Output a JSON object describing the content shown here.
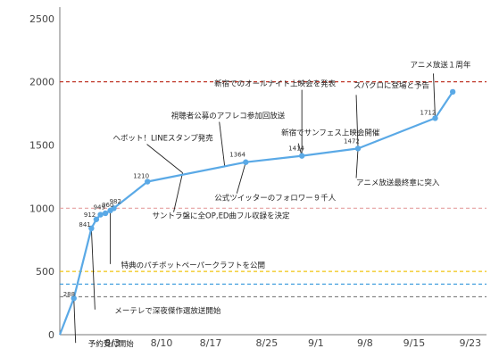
{
  "chart_data": {
    "type": "line",
    "title": "",
    "xlabel": "",
    "ylabel": "",
    "ylim": [
      0,
      2650
    ],
    "yticks": [
      "0",
      "500",
      "1000",
      "1500",
      "2000",
      "2500"
    ],
    "xticks": [
      {
        "day": 20,
        "label": "8/3"
      },
      {
        "day": 27,
        "label": "8/10"
      },
      {
        "day": 34,
        "label": "8/17"
      },
      {
        "day": 42,
        "label": "8/25"
      },
      {
        "day": 49,
        "label": "9/1"
      },
      {
        "day": 56,
        "label": "9/8"
      },
      {
        "day": 63,
        "label": "9/15"
      },
      {
        "day": 71,
        "label": "9/23"
      }
    ],
    "series": [
      {
        "color": "#5aa9e6",
        "points": [
          {
            "day": 14.5,
            "value": 288,
            "label": "288"
          },
          {
            "day": 17.0,
            "value": 841,
            "label": "841"
          },
          {
            "day": 17.7,
            "value": 912,
            "label": "912"
          },
          {
            "day": 18.3,
            "value": 949,
            "label": "949"
          },
          {
            "day": 19.0,
            "value": 960,
            "label": "960"
          },
          {
            "day": 19.7,
            "value": 982,
            "label": "982"
          },
          {
            "day": 20.2,
            "value": 1000,
            "label": ""
          },
          {
            "day": 25.0,
            "value": 1210,
            "label": "1210"
          },
          {
            "day": 39.0,
            "value": 1364,
            "label": "1364"
          },
          {
            "day": 47.0,
            "value": 1414,
            "label": "1414"
          },
          {
            "day": 55.0,
            "value": 1472,
            "label": "1472"
          },
          {
            "day": 66.0,
            "value": 1712,
            "label": "1712"
          },
          {
            "day": 68.5,
            "value": 1920,
            "label": ""
          }
        ]
      }
    ],
    "reference_lines": [
      {
        "value": 2000,
        "color": "#c0392b"
      },
      {
        "value": 1000,
        "color": "#e6a0a0"
      },
      {
        "value": 500,
        "color": "#f1c40f"
      },
      {
        "value": 400,
        "color": "#3498db"
      },
      {
        "value": 300,
        "color": "#888888"
      }
    ],
    "annotations": [
      {
        "text": "予約受付開始",
        "day": 14.5,
        "value": 288
      },
      {
        "text": "メーテレで深夜傑作選放送開始",
        "day": 17.0,
        "value": 841
      },
      {
        "text": "特典のパチボットペーパークラフトを公開",
        "day": 19.7,
        "value": 982
      },
      {
        "text": "ヘボット！LINEスタンプ発売",
        "day": 30.0,
        "value": 1280
      },
      {
        "text": "サントラ盤に全OP,ED曲フル収録を決定",
        "day": 30.0,
        "value": 1280
      },
      {
        "text": "視聴者公募のアフレコ参加回放送",
        "day": 36.0,
        "value": 1330
      },
      {
        "text": "公式ツイッターのフォロワー９千人",
        "day": 39.0,
        "value": 1364
      },
      {
        "text": "新宿でサンフェス上映会開催",
        "day": 47.0,
        "value": 1414
      },
      {
        "text": "新宿でのオールナイト上映会を発表",
        "day": 47.0,
        "value": 1414
      },
      {
        "text": "スパクロに登場と予告",
        "day": 55.0,
        "value": 1472
      },
      {
        "text": "アニメ放送最終章に突入",
        "day": 55.0,
        "value": 1472
      },
      {
        "text": "アニメ放送１周年",
        "day": 66.0,
        "value": 1712
      }
    ]
  }
}
